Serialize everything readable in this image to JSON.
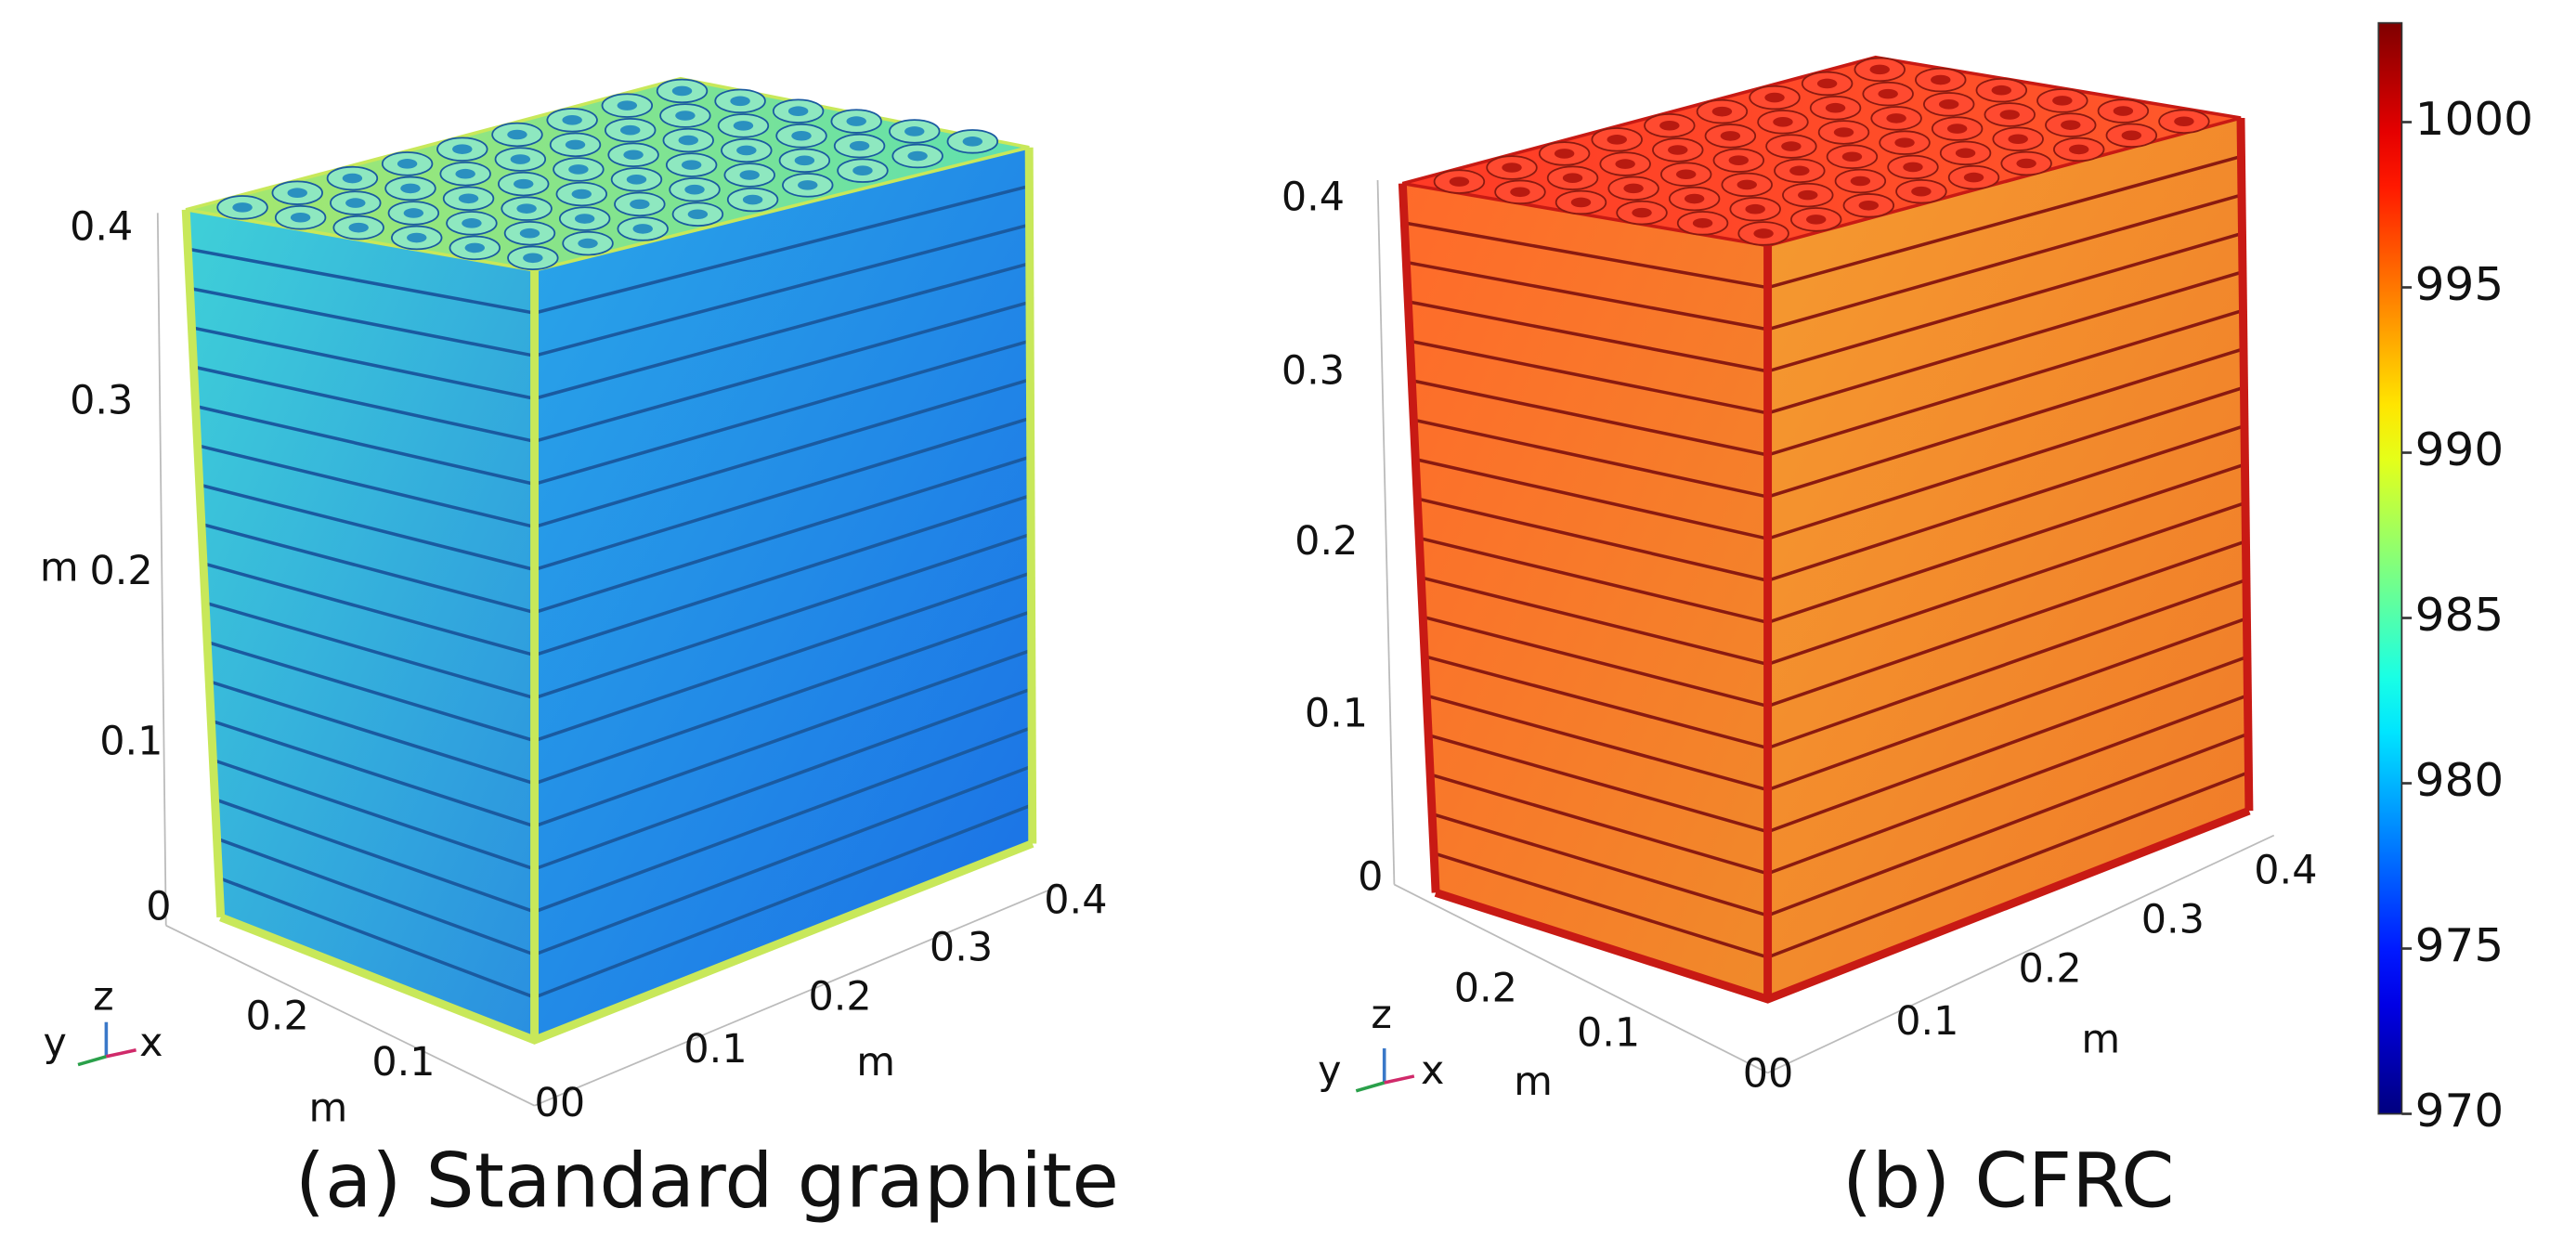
{
  "panels": [
    {
      "caption": "(a) Standard graphite",
      "z_ticks": [
        "0.4",
        "0.3",
        "0.2",
        "0.1",
        "0"
      ],
      "z_label": "m",
      "y_ticks": [
        "0.2",
        "0.1"
      ],
      "y_label": "m",
      "x_ticks": [
        "0.1",
        "0.2",
        "0.3",
        "0.4"
      ],
      "x_label": "m",
      "origin_label": "00",
      "triad": [
        "z",
        "y",
        "x"
      ]
    },
    {
      "caption": "(b) CFRC",
      "z_ticks": [
        "0.4",
        "0.3",
        "0.2",
        "0.1",
        "0"
      ],
      "y_ticks": [
        "0.2",
        "0.1"
      ],
      "y_label": "m",
      "x_ticks": [
        "0.1",
        "0.2",
        "0.3",
        "0.4"
      ],
      "x_label": "m",
      "origin_label": "00",
      "triad": [
        "z",
        "y",
        "x"
      ]
    }
  ],
  "colorbar": {
    "lim": [
      970,
      1003
    ],
    "ticks": [
      970,
      975,
      980,
      985,
      990,
      995,
      1000
    ]
  }
}
